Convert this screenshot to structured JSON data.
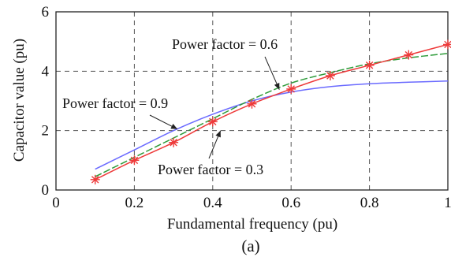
{
  "chart_data": {
    "type": "line",
    "title": "",
    "xlabel": "Fundamental frequency (pu)",
    "ylabel": "Capacitor value (pu)",
    "xlim": [
      0,
      1
    ],
    "ylim": [
      0,
      6
    ],
    "x_ticks": [
      "0",
      "0.2",
      "0.4",
      "0.6",
      "0.8",
      "1"
    ],
    "y_ticks": [
      "0",
      "2",
      "4",
      "6"
    ],
    "grid": true,
    "caption": "(a)",
    "colors": {
      "pf_0_9": "#6b6bff",
      "pf_0_6": "#2e9b3a",
      "pf_0_3": "#ee3a3a"
    },
    "series": [
      {
        "key": "pf_0_9",
        "x": [
          0.1,
          0.2,
          0.3,
          0.4,
          0.5,
          0.6,
          0.7,
          0.8,
          0.9,
          1.0
        ],
        "values": [
          0.7,
          1.35,
          2.0,
          2.55,
          3.0,
          3.3,
          3.48,
          3.58,
          3.63,
          3.67
        ]
      },
      {
        "key": "pf_0_6",
        "x": [
          0.1,
          0.2,
          0.3,
          0.4,
          0.5,
          0.6,
          0.7,
          0.8,
          0.9,
          1.0
        ],
        "values": [
          0.45,
          1.1,
          1.75,
          2.4,
          3.05,
          3.6,
          3.95,
          4.25,
          4.45,
          4.6
        ]
      },
      {
        "key": "pf_0_3",
        "x": [
          0.1,
          0.2,
          0.3,
          0.4,
          0.5,
          0.6,
          0.7,
          0.8,
          0.9,
          1.0
        ],
        "values": [
          0.35,
          1.0,
          1.6,
          2.3,
          2.9,
          3.4,
          3.85,
          4.2,
          4.55,
          4.9
        ],
        "markers": "asterisk"
      }
    ],
    "annotations": [
      {
        "text": "Power factor = 0.6",
        "arrow_to": [
          0.57,
          3.38
        ]
      },
      {
        "text": "Power factor = 0.9",
        "arrow_to": [
          0.31,
          2.05
        ]
      },
      {
        "text": "Power factor = 0.3",
        "arrow_to": [
          0.42,
          2.0
        ]
      }
    ]
  }
}
